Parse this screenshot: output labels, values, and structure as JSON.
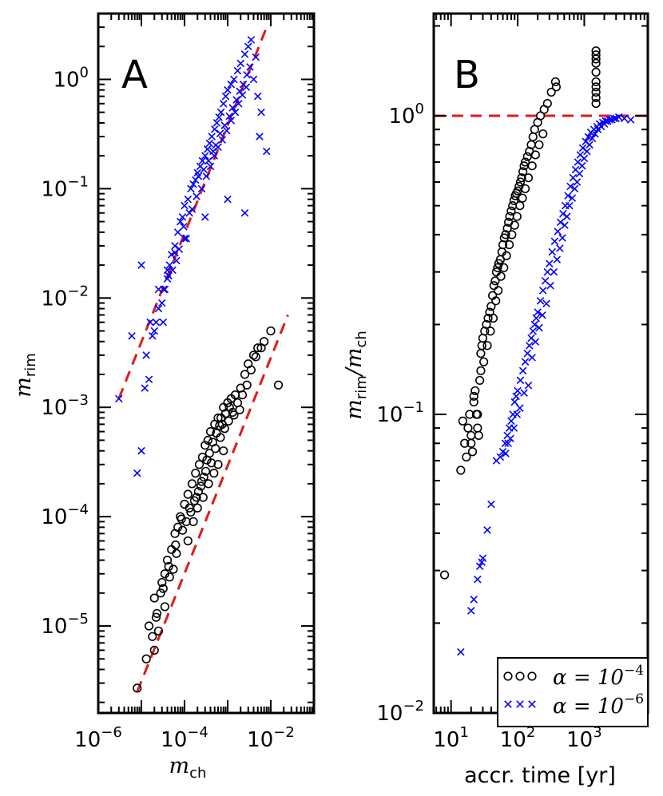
{
  "chart_data": [
    {
      "panel": "A",
      "type": "scatter",
      "xscale": "log",
      "yscale": "log",
      "xlim": [
        1e-06,
        0.1
      ],
      "ylim": [
        1.6e-06,
        4.0
      ],
      "xlabel_main": "m",
      "xlabel_sub": "ch",
      "ylabel_main": "m",
      "ylabel_sub": "rim",
      "xticks": [
        {
          "value": 1e-06,
          "base": "10",
          "exp": "−6"
        },
        {
          "value": 0.0001,
          "base": "10",
          "exp": "−4"
        },
        {
          "value": 0.01,
          "base": "10",
          "exp": "−2"
        }
      ],
      "yticks": [
        {
          "value": 1e-05,
          "base": "10",
          "exp": "−5"
        },
        {
          "value": 0.0001,
          "base": "10",
          "exp": "−4"
        },
        {
          "value": 0.001,
          "base": "10",
          "exp": "−3"
        },
        {
          "value": 0.01,
          "base": "10",
          "exp": "−2"
        },
        {
          "value": 0.1,
          "base": "10",
          "exp": "−1"
        },
        {
          "value": 1,
          "base": "10",
          "exp": "0"
        }
      ],
      "series": [
        {
          "name": "alpha = 1e-4",
          "marker": "circle",
          "color": "#000000",
          "x": [
            8e-06,
            1.3e-05,
            1.8e-05,
            2.2e-05,
            2.8e-05,
            3.5e-05,
            1.5e-05,
            2e-05,
            3e-05,
            4e-05,
            5e-05,
            6e-05,
            7e-05,
            8e-05,
            0.0001,
            0.00012,
            0.00015,
            0.00018,
            0.00022,
            0.00026,
            0.0003,
            0.00035,
            0.0004,
            0.0005,
            0.0006,
            0.0007,
            0.0008,
            0.001,
            0.0012,
            0.0015,
            0.002,
            0.0025,
            0.003,
            0.004,
            0.005,
            0.007,
            0.01,
            0.015,
            2e-05,
            2.5e-05,
            3.5e-05,
            4.5e-05,
            5.5e-05,
            6.5e-05,
            9e-05,
            0.00011,
            0.00014,
            0.00017,
            0.00021,
            0.00025,
            0.00028,
            0.00033,
            0.00038,
            0.00045,
            0.00055,
            0.00065,
            0.00075,
            0.0009,
            0.0011,
            0.0013,
            0.0017,
            0.0022,
            0.0028,
            0.0035,
            0.0045,
            0.006,
            2.3e-05,
            3.2e-05,
            4.3e-05,
            6.2e-05,
            8.5e-05,
            0.00013,
            0.00019,
            0.00024,
            0.00031,
            0.00042,
            0.00052,
            0.00068,
            0.00085,
            0.00105,
            0.0014,
            0.0019,
            0.00012,
            0.00016,
            0.0002,
            0.00027,
            0.00036,
            0.00048,
            0.0006,
            0.0008
          ],
          "y": [
            2.7e-06,
            5e-06,
            8e-06,
            1.2e-05,
            2e-05,
            3e-05,
            1e-05,
            1.8e-05,
            2.5e-05,
            4e-05,
            5e-05,
            7e-05,
            8e-05,
            0.0001,
            0.00013,
            0.00016,
            0.0002,
            0.00025,
            0.0003,
            0.00035,
            0.00045,
            0.0005,
            0.0006,
            0.0007,
            0.0008,
            0.0008,
            0.001,
            0.0011,
            0.0012,
            0.0013,
            0.0015,
            0.002,
            0.0025,
            0.003,
            0.0035,
            0.004,
            0.005,
            0.0016,
            6e-06,
            9e-06,
            1.5e-05,
            2.8e-05,
            3.3e-05,
            4.6e-05,
            7.5e-05,
            9e-05,
            0.00011,
            0.00014,
            0.00017,
            0.00021,
            0.00023,
            0.00033,
            0.00038,
            0.00048,
            0.00058,
            0.00068,
            0.0007,
            0.00088,
            0.001,
            0.0009,
            0.0011,
            0.0013,
            0.0016,
            0.0022,
            0.0029,
            0.0035,
            1.3e-05,
            2.2e-05,
            3.5e-05,
            5.5e-05,
            9.5e-05,
            0.00012,
            0.00015,
            0.00019,
            0.00026,
            0.00031,
            0.00042,
            0.00053,
            0.00064,
            0.00075,
            0.00085,
            0.00095,
            6e-05,
            9e-05,
            0.00012,
            0.00015,
            0.0002,
            0.00025,
            0.0003,
            0.0004
          ]
        },
        {
          "name": "alpha = 1e-6",
          "marker": "x",
          "color": "#0000ff",
          "x": [
            3e-06,
            8e-06,
            1e-05,
            1.2e-05,
            1.5e-05,
            1.8e-05,
            2e-05,
            2.2e-05,
            2.5e-05,
            3e-05,
            3.5e-05,
            4e-05,
            4.5e-05,
            5e-05,
            6e-05,
            7e-05,
            8e-05,
            9e-05,
            0.0001,
            0.00012,
            0.00014,
            0.00016,
            0.00018,
            0.0002,
            0.00023,
            0.00026,
            0.0003,
            0.00034,
            0.00038,
            0.00043,
            0.0005,
            0.00056,
            0.00063,
            0.0007,
            0.0008,
            0.0009,
            0.001,
            0.0012,
            0.0014,
            0.0017,
            0.002,
            0.0025,
            0.003,
            0.0035,
            0.004,
            0.005,
            0.006,
            0.008,
            6e-06,
            1.3e-05,
            1.6e-05,
            3.2e-05,
            5.3e-05,
            6.5e-05,
            0.00011,
            0.00013,
            0.00021,
            0.00028,
            0.00036,
            0.00046,
            0.00053,
            0.00067,
            0.00085,
            0.0011,
            0.0013,
            0.0016,
            0.0019,
            0.0023,
            0.0028,
            0.0033,
            0.0045,
            3.3e-05,
            4.3e-05,
            7.5e-05,
            9.5e-05,
            0.00015,
            0.00019,
            0.00025,
            0.00032,
            0.0004,
            0.00049,
            0.0006,
            0.00075,
            0.00095,
            0.0012,
            0.0015,
            0.0018,
            0.0022,
            0.0027,
            0.0055,
            1e-05,
            2.5e-05,
            4e-05,
            6e-05,
            0.0001,
            0.0003,
            0.001,
            0.0025
          ],
          "y": [
            0.0012,
            0.00025,
            0.0004,
            0.0015,
            0.0018,
            0.0045,
            0.005,
            0.006,
            0.008,
            0.009,
            0.012,
            0.015,
            0.02,
            0.025,
            0.03,
            0.04,
            0.05,
            0.055,
            0.07,
            0.08,
            0.1,
            0.11,
            0.12,
            0.14,
            0.16,
            0.18,
            0.2,
            0.23,
            0.26,
            0.3,
            0.35,
            0.4,
            0.45,
            0.5,
            0.6,
            0.7,
            0.8,
            0.9,
            1.0,
            1.2,
            1.4,
            1.7,
            2.0,
            2.3,
            1.0,
            0.7,
            0.5,
            0.22,
            0.0045,
            0.003,
            0.006,
            0.006,
            0.018,
            0.022,
            0.035,
            0.06,
            0.13,
            0.15,
            0.18,
            0.22,
            0.25,
            0.32,
            0.38,
            0.46,
            0.55,
            0.65,
            0.78,
            0.9,
            1.1,
            1.3,
            1.6,
            0.012,
            0.016,
            0.028,
            0.045,
            0.065,
            0.085,
            0.1,
            0.13,
            0.16,
            0.2,
            0.24,
            0.28,
            0.34,
            0.42,
            0.5,
            0.6,
            0.72,
            0.85,
            0.3,
            0.02,
            0.012,
            0.018,
            0.026,
            0.035,
            0.055,
            0.08,
            0.06
          ]
        }
      ],
      "fit_lines": [
        {
          "color": "#e31a1c",
          "style": "dashed",
          "x": [
            3e-06,
            0.008
          ],
          "y": [
            0.0012,
            3.0
          ]
        },
        {
          "color": "#e31a1c",
          "style": "dashed",
          "x": [
            8e-06,
            0.025
          ],
          "y": [
            2.5e-06,
            0.007
          ]
        }
      ]
    },
    {
      "panel": "B",
      "type": "scatter",
      "xscale": "log",
      "yscale": "log",
      "xlim": [
        5.5,
        9000
      ],
      "ylim": [
        0.01,
        2.2
      ],
      "xlabel": "accr. time [yr]",
      "ylabel_main": "m",
      "ylabel_mid": "rim",
      "ylabel_div": "/m",
      "ylabel_sub": "ch",
      "xticks": [
        {
          "value": 10,
          "base": "10",
          "exp": "1"
        },
        {
          "value": 100,
          "base": "10",
          "exp": "2"
        },
        {
          "value": 1000,
          "base": "10",
          "exp": "3"
        }
      ],
      "yticks": [
        {
          "value": 0.01,
          "base": "10",
          "exp": "−2"
        },
        {
          "value": 0.1,
          "base": "10",
          "exp": "−1"
        },
        {
          "value": 1,
          "base": "10",
          "exp": "0"
        }
      ],
      "reference_line": {
        "y": 1.0,
        "color": "#e31a1c",
        "style": "dashed"
      },
      "series": [
        {
          "name": "alpha = 1e-4",
          "marker": "circle",
          "color": "#000000",
          "x": [
            8,
            14,
            16,
            18,
            19,
            20,
            21,
            22,
            23,
            24,
            25,
            26,
            27,
            28,
            29,
            30,
            32,
            34,
            36,
            38,
            40,
            42,
            44,
            46,
            48,
            50,
            52,
            55,
            58,
            60,
            63,
            66,
            70,
            73,
            76,
            80,
            84,
            88,
            92,
            96,
            100,
            105,
            110,
            115,
            120,
            125,
            130,
            140,
            150,
            160,
            170,
            180,
            200,
            220,
            250,
            280,
            320,
            370,
            1500,
            1500,
            1500,
            1500,
            1500,
            1500,
            1500,
            1500,
            1500,
            1500,
            15,
            17,
            20,
            22,
            25,
            28,
            31,
            35,
            39,
            43,
            47,
            51,
            56,
            62,
            68,
            75,
            82,
            90,
            98,
            108,
            118,
            130,
            145,
            165,
            185,
            210,
            240,
            380
          ],
          "y": [
            0.029,
            0.065,
            0.08,
            0.09,
            0.1,
            0.085,
            0.075,
            0.11,
            0.12,
            0.1,
            0.09,
            0.085,
            0.13,
            0.16,
            0.17,
            0.18,
            0.19,
            0.2,
            0.21,
            0.22,
            0.23,
            0.25,
            0.27,
            0.28,
            0.3,
            0.31,
            0.32,
            0.33,
            0.35,
            0.37,
            0.39,
            0.4,
            0.42,
            0.44,
            0.46,
            0.48,
            0.5,
            0.52,
            0.54,
            0.55,
            0.56,
            0.58,
            0.6,
            0.62,
            0.65,
            0.68,
            0.7,
            0.73,
            0.76,
            0.8,
            0.85,
            0.9,
            0.95,
            1.0,
            1.05,
            1.1,
            1.2,
            1.3,
            1.1,
            1.15,
            1.2,
            1.25,
            1.3,
            1.4,
            1.5,
            1.55,
            1.6,
            1.65,
            0.095,
            0.072,
            0.08,
            0.115,
            0.1,
            0.14,
            0.15,
            0.17,
            0.19,
            0.21,
            0.24,
            0.26,
            0.29,
            0.31,
            0.34,
            0.37,
            0.4,
            0.43,
            0.46,
            0.5,
            0.53,
            0.57,
            0.62,
            0.68,
            0.74,
            0.8,
            0.87,
            1.25
          ]
        },
        {
          "name": "alpha = 1e-6",
          "marker": "x",
          "color": "#0000ff",
          "x": [
            14,
            20,
            22,
            25,
            27,
            29,
            30,
            35,
            40,
            48,
            55,
            60,
            65,
            70,
            75,
            80,
            85,
            90,
            95,
            100,
            110,
            120,
            130,
            140,
            150,
            160,
            170,
            180,
            190,
            200,
            220,
            240,
            260,
            280,
            300,
            330,
            360,
            400,
            440,
            480,
            520,
            570,
            620,
            680,
            740,
            800,
            870,
            950,
            1050,
            1150,
            1250,
            1400,
            1550,
            1700,
            1900,
            2100,
            2400,
            2800,
            3300,
            4000,
            5000,
            66,
            72,
            78,
            88,
            98,
            108,
            125,
            145,
            165,
            185,
            210,
            235,
            270,
            310,
            350,
            390,
            430,
            470,
            510,
            550,
            600,
            660,
            720,
            780,
            850,
            930,
            1000,
            1100,
            1200,
            1320,
            1450,
            1600,
            1800,
            2000,
            2250,
            2600,
            3000
          ],
          "y": [
            0.016,
            0.022,
            0.024,
            0.028,
            0.031,
            0.032,
            0.033,
            0.041,
            0.05,
            0.07,
            0.072,
            0.075,
            0.08,
            0.085,
            0.09,
            0.095,
            0.1,
            0.11,
            0.115,
            0.12,
            0.13,
            0.14,
            0.15,
            0.16,
            0.17,
            0.18,
            0.19,
            0.2,
            0.21,
            0.22,
            0.24,
            0.26,
            0.28,
            0.3,
            0.32,
            0.35,
            0.38,
            0.41,
            0.44,
            0.47,
            0.5,
            0.54,
            0.58,
            0.62,
            0.66,
            0.7,
            0.74,
            0.78,
            0.82,
            0.85,
            0.88,
            0.9,
            0.92,
            0.94,
            0.95,
            0.96,
            0.97,
            0.98,
            0.99,
            0.98,
            0.97,
            0.074,
            0.08,
            0.083,
            0.09,
            0.1,
            0.105,
            0.118,
            0.125,
            0.155,
            0.175,
            0.195,
            0.215,
            0.235,
            0.27,
            0.3,
            0.33,
            0.36,
            0.39,
            0.43,
            0.46,
            0.5,
            0.53,
            0.57,
            0.6,
            0.64,
            0.68,
            0.72,
            0.76,
            0.8,
            0.84,
            0.87,
            0.9,
            0.92,
            0.94,
            0.96,
            0.97,
            0.98
          ]
        }
      ]
    }
  ],
  "legend": {
    "placement": "lower-right of panel B",
    "entries": [
      {
        "marker": "circle",
        "color": "#000000",
        "label_prefix": "α = 10",
        "label_exp": "−4"
      },
      {
        "marker": "x",
        "color": "#0000ff",
        "label_prefix": "α = 10",
        "label_exp": "−6"
      }
    ]
  }
}
